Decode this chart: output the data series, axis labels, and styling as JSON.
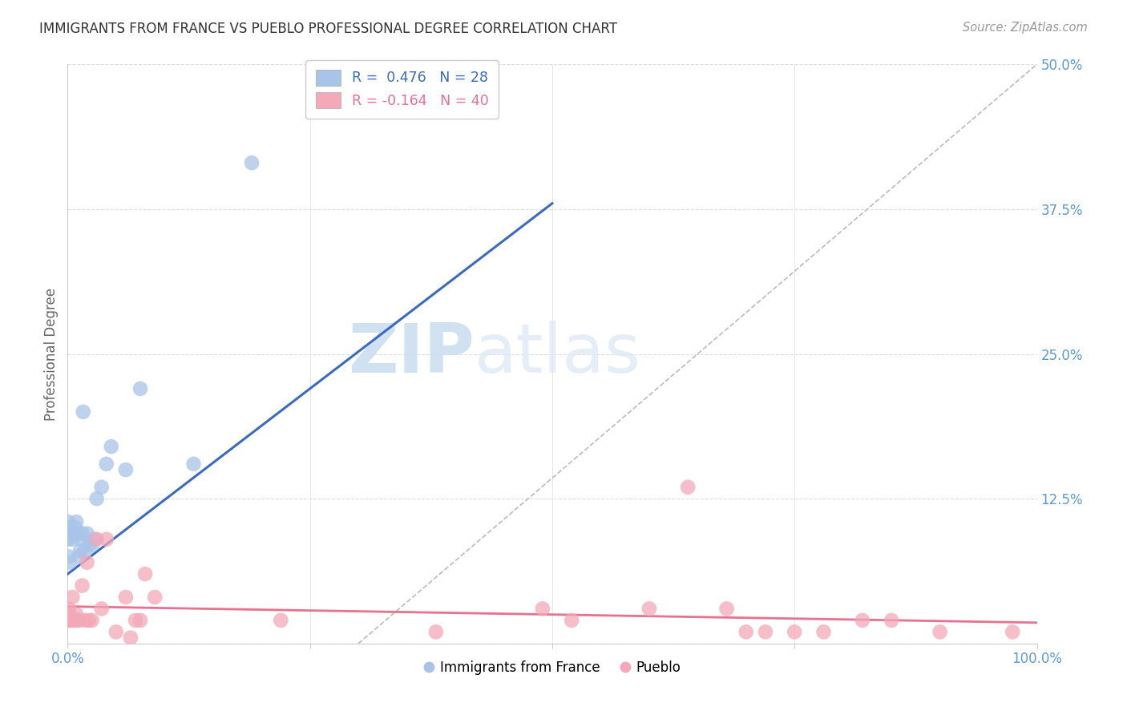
{
  "title": "IMMIGRANTS FROM FRANCE VS PUEBLO PROFESSIONAL DEGREE CORRELATION CHART",
  "source": "Source: ZipAtlas.com",
  "ylabel": "Professional Degree",
  "yticks": [
    0.0,
    0.125,
    0.25,
    0.375,
    0.5
  ],
  "xlim": [
    0.0,
    1.0
  ],
  "ylim": [
    0.0,
    0.5
  ],
  "watermark_zip": "ZIP",
  "watermark_atlas": "atlas",
  "legend_label1": "Immigrants from France",
  "legend_label2": "Pueblo",
  "color_blue": "#a8c4e8",
  "color_pink": "#f4a8b8",
  "line_color_blue": "#3a6bbf",
  "line_color_pink": "#e87090",
  "diagonal_color": "#bbbbbb",
  "title_color": "#333333",
  "source_color": "#999999",
  "axis_label_color": "#5b9bd5",
  "blue_points_x": [
    0.001,
    0.001,
    0.001,
    0.001,
    0.002,
    0.005,
    0.007,
    0.008,
    0.009,
    0.01,
    0.012,
    0.013,
    0.014,
    0.015,
    0.016,
    0.018,
    0.02,
    0.022,
    0.025,
    0.028,
    0.03,
    0.035,
    0.04,
    0.045,
    0.06,
    0.075,
    0.13,
    0.19
  ],
  "blue_points_y": [
    0.075,
    0.09,
    0.1,
    0.105,
    0.07,
    0.09,
    0.095,
    0.1,
    0.105,
    0.02,
    0.075,
    0.08,
    0.09,
    0.095,
    0.2,
    0.08,
    0.095,
    0.085,
    0.085,
    0.09,
    0.125,
    0.135,
    0.155,
    0.17,
    0.15,
    0.22,
    0.155,
    0.415
  ],
  "pink_points_x": [
    0.001,
    0.001,
    0.001,
    0.002,
    0.003,
    0.004,
    0.005,
    0.007,
    0.009,
    0.012,
    0.015,
    0.018,
    0.02,
    0.022,
    0.025,
    0.03,
    0.035,
    0.04,
    0.05,
    0.06,
    0.065,
    0.07,
    0.075,
    0.08,
    0.09,
    0.22,
    0.38,
    0.49,
    0.52,
    0.6,
    0.64,
    0.68,
    0.7,
    0.72,
    0.75,
    0.78,
    0.82,
    0.85,
    0.9,
    0.975
  ],
  "pink_points_y": [
    0.02,
    0.025,
    0.03,
    0.025,
    0.02,
    0.02,
    0.04,
    0.02,
    0.025,
    0.02,
    0.05,
    0.02,
    0.07,
    0.02,
    0.02,
    0.09,
    0.03,
    0.09,
    0.01,
    0.04,
    0.005,
    0.02,
    0.02,
    0.06,
    0.04,
    0.02,
    0.01,
    0.03,
    0.02,
    0.03,
    0.135,
    0.03,
    0.01,
    0.01,
    0.01,
    0.01,
    0.02,
    0.02,
    0.01,
    0.01
  ],
  "blue_line_x": [
    0.0,
    0.5
  ],
  "blue_line_y": [
    0.06,
    0.38
  ],
  "pink_line_x": [
    0.0,
    1.0
  ],
  "pink_line_y": [
    0.032,
    0.018
  ],
  "diag_line_x": [
    0.3,
    1.0
  ],
  "diag_line_y": [
    0.0,
    0.5
  ]
}
